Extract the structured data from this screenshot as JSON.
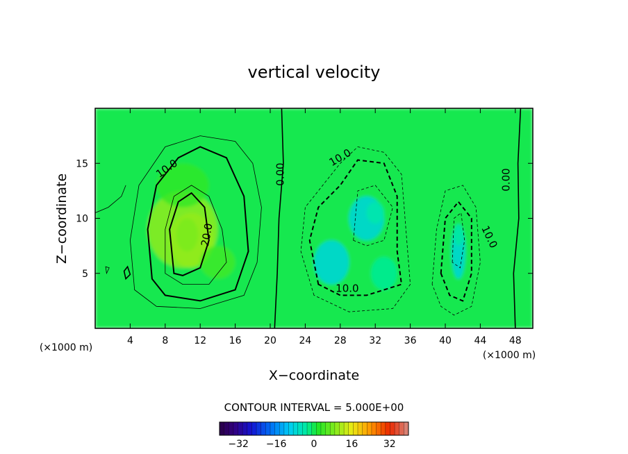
{
  "chart_data": {
    "type": "heatmap",
    "title": "vertical velocity",
    "xlabel": "X−coordinate",
    "ylabel": "Z−coordinate",
    "x_units_left": "(×1000 m)",
    "x_units_right": "(×1000 m)",
    "xlim": [
      0,
      50
    ],
    "ylim": [
      0,
      20
    ],
    "x_ticks": [
      4,
      8,
      12,
      16,
      20,
      24,
      28,
      32,
      36,
      40,
      44,
      48
    ],
    "y_ticks": [
      5,
      10,
      15
    ],
    "contour_labels": [
      {
        "text": "10.0",
        "x": 8.2,
        "z": 14.5,
        "angle": -35
      },
      {
        "text": "20.0",
        "x": 12.8,
        "z": 8.5,
        "angle": -80
      },
      {
        "text": "0.00",
        "x": 21.2,
        "z": 14.0,
        "angle": -90
      },
      {
        "text": "10.0",
        "x": 28.0,
        "z": 15.5,
        "angle": -30
      },
      {
        "text": "10.0",
        "x": 28.8,
        "z": 3.6,
        "angle": 0
      },
      {
        "text": "10.0",
        "x": 45.0,
        "z": 8.3,
        "angle": 65
      },
      {
        "text": "0.00",
        "x": 47.0,
        "z": 13.5,
        "angle": -90
      }
    ],
    "cells": [
      {
        "x": 10,
        "z": 9,
        "sx": 8,
        "sz": 7,
        "v": 10
      },
      {
        "x": 11,
        "z": 8,
        "sx": 5,
        "sz": 5,
        "v": 10
      },
      {
        "x": 10.5,
        "z": 8.5,
        "sx": 2.5,
        "sz": 3,
        "v": 8
      },
      {
        "x": 14,
        "z": 6,
        "sx": 4,
        "sz": 3,
        "v": 4
      },
      {
        "x": 10,
        "z": 13,
        "sx": 6,
        "sz": 4,
        "v": 3
      },
      {
        "x": 27,
        "z": 6,
        "sx": 4,
        "sz": 4,
        "v": -9
      },
      {
        "x": 31,
        "z": 10,
        "sx": 4,
        "sz": 4,
        "v": -9
      },
      {
        "x": 32,
        "z": 10.5,
        "sx": 2,
        "sz": 2,
        "v": -4
      },
      {
        "x": 33,
        "z": 5,
        "sx": 3,
        "sz": 3,
        "v": -3
      },
      {
        "x": 41.5,
        "z": 7,
        "sx": 1.6,
        "sz": 5,
        "v": -9
      },
      {
        "x": 41.5,
        "z": 8.5,
        "sx": 1,
        "sz": 2,
        "v": -3
      }
    ],
    "colorbar": {
      "label": "CONTOUR INTERVAL = 5.000E+00",
      "min": -40,
      "max": 40,
      "ticks": [
        -32,
        -16,
        0,
        16,
        32
      ]
    }
  }
}
